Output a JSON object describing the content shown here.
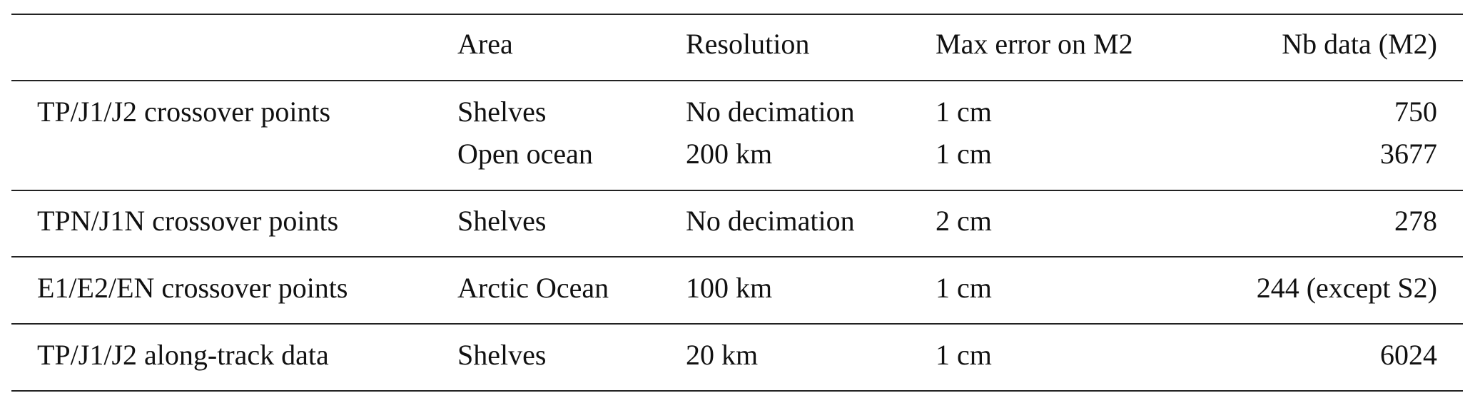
{
  "table": {
    "headers": [
      "",
      "Area",
      "Resolution",
      "Max error on M2",
      "Nb data (M2)"
    ],
    "groups": [
      {
        "dataset": "TP/J1/J2 crossover points",
        "rows": [
          {
            "area": "Shelves",
            "resolution": "No decimation",
            "max_error": "1 cm",
            "nb_data": "750"
          },
          {
            "area": "Open ocean",
            "resolution": "200 km",
            "max_error": "1 cm",
            "nb_data": "3677"
          }
        ]
      },
      {
        "dataset": "TPN/J1N crossover points",
        "rows": [
          {
            "area": "Shelves",
            "resolution": "No decimation",
            "max_error": "2 cm",
            "nb_data": "278"
          }
        ]
      },
      {
        "dataset": "E1/E2/EN crossover points",
        "rows": [
          {
            "area": "Arctic Ocean",
            "resolution": "100 km",
            "max_error": "1 cm",
            "nb_data": "244 (except S2)"
          }
        ]
      },
      {
        "dataset": "TP/J1/J2 along-track data",
        "rows": [
          {
            "area": "Shelves",
            "resolution": "20 km",
            "max_error": "1 cm",
            "nb_data": "6024"
          }
        ]
      }
    ]
  }
}
